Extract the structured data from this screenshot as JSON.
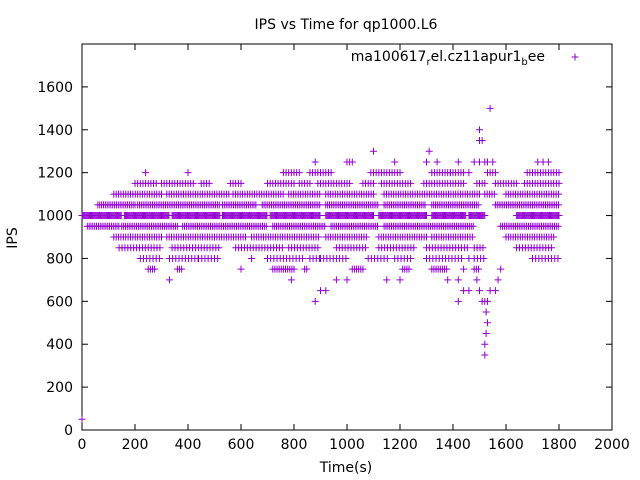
{
  "chart_data": {
    "type": "scatter",
    "title": "IPS vs Time for qp1000.L6",
    "xlabel": "Time(s)",
    "ylabel": "IPS",
    "xlim": [
      0,
      2000
    ],
    "ylim": [
      0,
      1800
    ],
    "xticks": [
      0,
      200,
      400,
      600,
      800,
      1000,
      1200,
      1400,
      1600,
      1800,
      2000
    ],
    "yticks": [
      0,
      200,
      400,
      600,
      800,
      1000,
      1200,
      1400,
      1600
    ],
    "grid": false,
    "legend_position": "top-right",
    "marker": "plus",
    "series": [
      {
        "name": "ma100617",
        "name_sub1": "r",
        "name_mid": "el.cz11apur1",
        "name_sub2": "b",
        "name_end": "ee",
        "color": "#9400d3",
        "bands": [
          {
            "y": 1000,
            "ranges": [
              [
                0,
                150
              ],
              [
                160,
                330
              ],
              [
                340,
                520
              ],
              [
                530,
                700
              ],
              [
                710,
                900
              ],
              [
                920,
                1100
              ],
              [
                1120,
                1300
              ],
              [
                1320,
                1450
              ],
              [
                1460,
                1520
              ],
              [
                1640,
                1800
              ]
            ],
            "step": 4
          },
          {
            "y": 950,
            "ranges": [
              [
                20,
                140
              ],
              [
                150,
                360
              ],
              [
                380,
                700
              ],
              [
                720,
                920
              ],
              [
                940,
                1120
              ],
              [
                1140,
                1480
              ],
              [
                1580,
                1800
              ]
            ],
            "step": 7
          },
          {
            "y": 1050,
            "ranges": [
              [
                60,
                200
              ],
              [
                210,
                520
              ],
              [
                530,
                660
              ],
              [
                680,
                900
              ],
              [
                920,
                1120
              ],
              [
                1140,
                1300
              ],
              [
                1320,
                1500
              ],
              [
                1560,
                1800
              ]
            ],
            "step": 7
          },
          {
            "y": 900,
            "ranges": [
              [
                120,
                300
              ],
              [
                320,
                620
              ],
              [
                640,
                900
              ],
              [
                920,
                1080
              ],
              [
                1120,
                1300
              ],
              [
                1320,
                1480
              ],
              [
                1600,
                1780
              ]
            ],
            "step": 9
          },
          {
            "y": 1100,
            "ranges": [
              [
                120,
                300
              ],
              [
                320,
                560
              ],
              [
                570,
                760
              ],
              [
                780,
                900
              ],
              [
                920,
                1100
              ],
              [
                1140,
                1500
              ],
              [
                1520,
                1560
              ],
              [
                1600,
                1800
              ]
            ],
            "step": 9
          },
          {
            "y": 850,
            "ranges": [
              [
                140,
                300
              ],
              [
                340,
                520
              ],
              [
                580,
                760
              ],
              [
                780,
                900
              ],
              [
                960,
                1080
              ],
              [
                1120,
                1260
              ],
              [
                1300,
                1460
              ],
              [
                1480,
                1520
              ],
              [
                1640,
                1780
              ]
            ],
            "step": 11
          },
          {
            "y": 1150,
            "ranges": [
              [
                200,
                280
              ],
              [
                300,
                420
              ],
              [
                450,
                480
              ],
              [
                560,
                600
              ],
              [
                700,
                800
              ],
              [
                820,
                860
              ],
              [
                890,
                1010
              ],
              [
                1060,
                1100
              ],
              [
                1130,
                1240
              ],
              [
                1290,
                1440
              ],
              [
                1490,
                1520
              ],
              [
                1560,
                1640
              ],
              [
                1670,
                1800
              ]
            ],
            "step": 10
          },
          {
            "y": 800,
            "ranges": [
              [
                220,
                300
              ],
              [
                330,
                440
              ],
              [
                440,
                520
              ],
              [
                700,
                840
              ],
              [
                860,
                900
              ],
              [
                900,
                1000
              ],
              [
                1080,
                1160
              ],
              [
                1180,
                1250
              ],
              [
                1300,
                1440
              ],
              [
                1480,
                1520
              ],
              [
                1700,
                1800
              ]
            ],
            "step": 12
          },
          {
            "y": 1200,
            "ranges": [
              [
                760,
                820
              ],
              [
                860,
                940
              ],
              [
                1090,
                1200
              ],
              [
                1320,
                1440
              ],
              [
                1530,
                1560
              ],
              [
                1680,
                1800
              ]
            ],
            "step": 10
          },
          {
            "y": 750,
            "ranges": [
              [
                250,
                280
              ],
              [
                360,
                380
              ],
              [
                720,
                800
              ],
              [
                840,
                850
              ],
              [
                1020,
                1060
              ],
              [
                1210,
                1240
              ],
              [
                1320,
                1380
              ],
              [
                1480,
                1500
              ]
            ],
            "step": 8
          },
          {
            "y": 700,
            "ranges": [
              [
                330,
                330
              ],
              [
                790,
                790
              ],
              [
                1420,
                1420
              ]
            ],
            "step": 10
          }
        ],
        "points": [
          [
            0,
            50
          ],
          [
            240,
            1200
          ],
          [
            400,
            1200
          ],
          [
            880,
            1250
          ],
          [
            1000,
            1250
          ],
          [
            1010,
            1250
          ],
          [
            1020,
            1250
          ],
          [
            1100,
            1300
          ],
          [
            1180,
            1250
          ],
          [
            1300,
            1250
          ],
          [
            1310,
            1300
          ],
          [
            1340,
            1250
          ],
          [
            1390,
            1200
          ],
          [
            1420,
            1250
          ],
          [
            1460,
            1200
          ],
          [
            1480,
            1250
          ],
          [
            1500,
            1250
          ],
          [
            1720,
            1250
          ],
          [
            1740,
            1250
          ],
          [
            1760,
            1250
          ],
          [
            1500,
            1400
          ],
          [
            1510,
            1350
          ],
          [
            1500,
            1350
          ],
          [
            1540,
            1500
          ],
          [
            1520,
            1250
          ],
          [
            1530,
            1250
          ],
          [
            1550,
            1250
          ],
          [
            600,
            750
          ],
          [
            640,
            800
          ],
          [
            900,
            650
          ],
          [
            920,
            650
          ],
          [
            1000,
            700
          ],
          [
            1150,
            700
          ],
          [
            1200,
            700
          ],
          [
            1380,
            700
          ],
          [
            1440,
            650
          ],
          [
            1460,
            650
          ],
          [
            1420,
            600
          ],
          [
            1570,
            700
          ],
          [
            1580,
            750
          ],
          [
            1520,
            600
          ],
          [
            1530,
            600
          ],
          [
            1510,
            600
          ],
          [
            1525,
            550
          ],
          [
            1530,
            500
          ],
          [
            1525,
            450
          ],
          [
            1520,
            400
          ],
          [
            1520,
            350
          ],
          [
            880,
            600
          ],
          [
            960,
            700
          ],
          [
            1440,
            750
          ],
          [
            1460,
            800
          ],
          [
            1490,
            700
          ],
          [
            1500,
            650
          ],
          [
            1540,
            650
          ],
          [
            1560,
            650
          ]
        ]
      }
    ]
  }
}
